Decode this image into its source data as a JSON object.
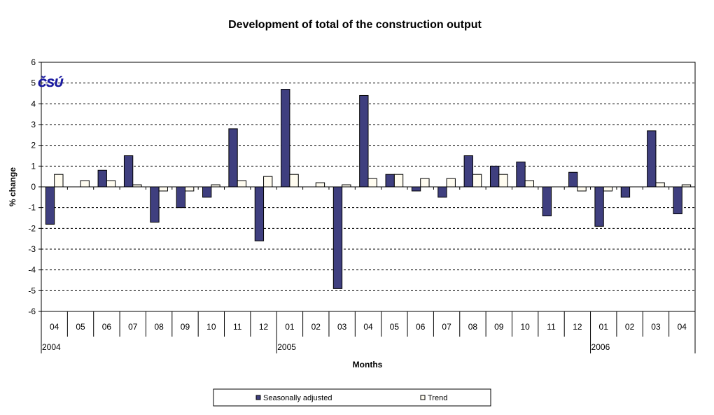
{
  "chart_data": {
    "type": "bar",
    "title": "Development of total of the construction output",
    "xlabel": "Months",
    "ylabel": "% change",
    "ylim": [
      -6,
      6
    ],
    "yticks": [
      6,
      5,
      4,
      3,
      2,
      1,
      0,
      -1,
      -2,
      -3,
      -4,
      -5,
      -6
    ],
    "grid": true,
    "legend_position": "bottom",
    "logo": "ČSÚ",
    "categories": [
      "04",
      "05",
      "06",
      "07",
      "08",
      "09",
      "10",
      "11",
      "12",
      "01",
      "02",
      "03",
      "04",
      "05",
      "06",
      "07",
      "08",
      "09",
      "10",
      "11",
      "12",
      "01",
      "02",
      "03",
      "04"
    ],
    "years": [
      {
        "label": "2004",
        "start": 0
      },
      {
        "label": "2005",
        "start": 9
      },
      {
        "label": "2006",
        "start": 21
      }
    ],
    "series": [
      {
        "name": "Seasonally adjusted",
        "color": "#3F3F7F",
        "values": [
          -1.8,
          0,
          0.8,
          1.5,
          -1.7,
          -1.0,
          -0.5,
          2.8,
          -2.6,
          4.7,
          0,
          -4.9,
          4.4,
          0.6,
          -0.2,
          -0.5,
          1.5,
          1.0,
          1.2,
          -1.4,
          0.7,
          -1.9,
          -0.5,
          2.7,
          -1.3
        ]
      },
      {
        "name": "Trend",
        "color": "#FFFCF0",
        "values": [
          0.6,
          0.3,
          0.3,
          0.1,
          -0.2,
          -0.2,
          0.1,
          0.3,
          0.5,
          0.6,
          0.2,
          0.1,
          0.4,
          0.6,
          0.4,
          0.4,
          0.6,
          0.6,
          0.3,
          0,
          -0.2,
          -0.2,
          0,
          0.2,
          0.1
        ]
      }
    ]
  }
}
